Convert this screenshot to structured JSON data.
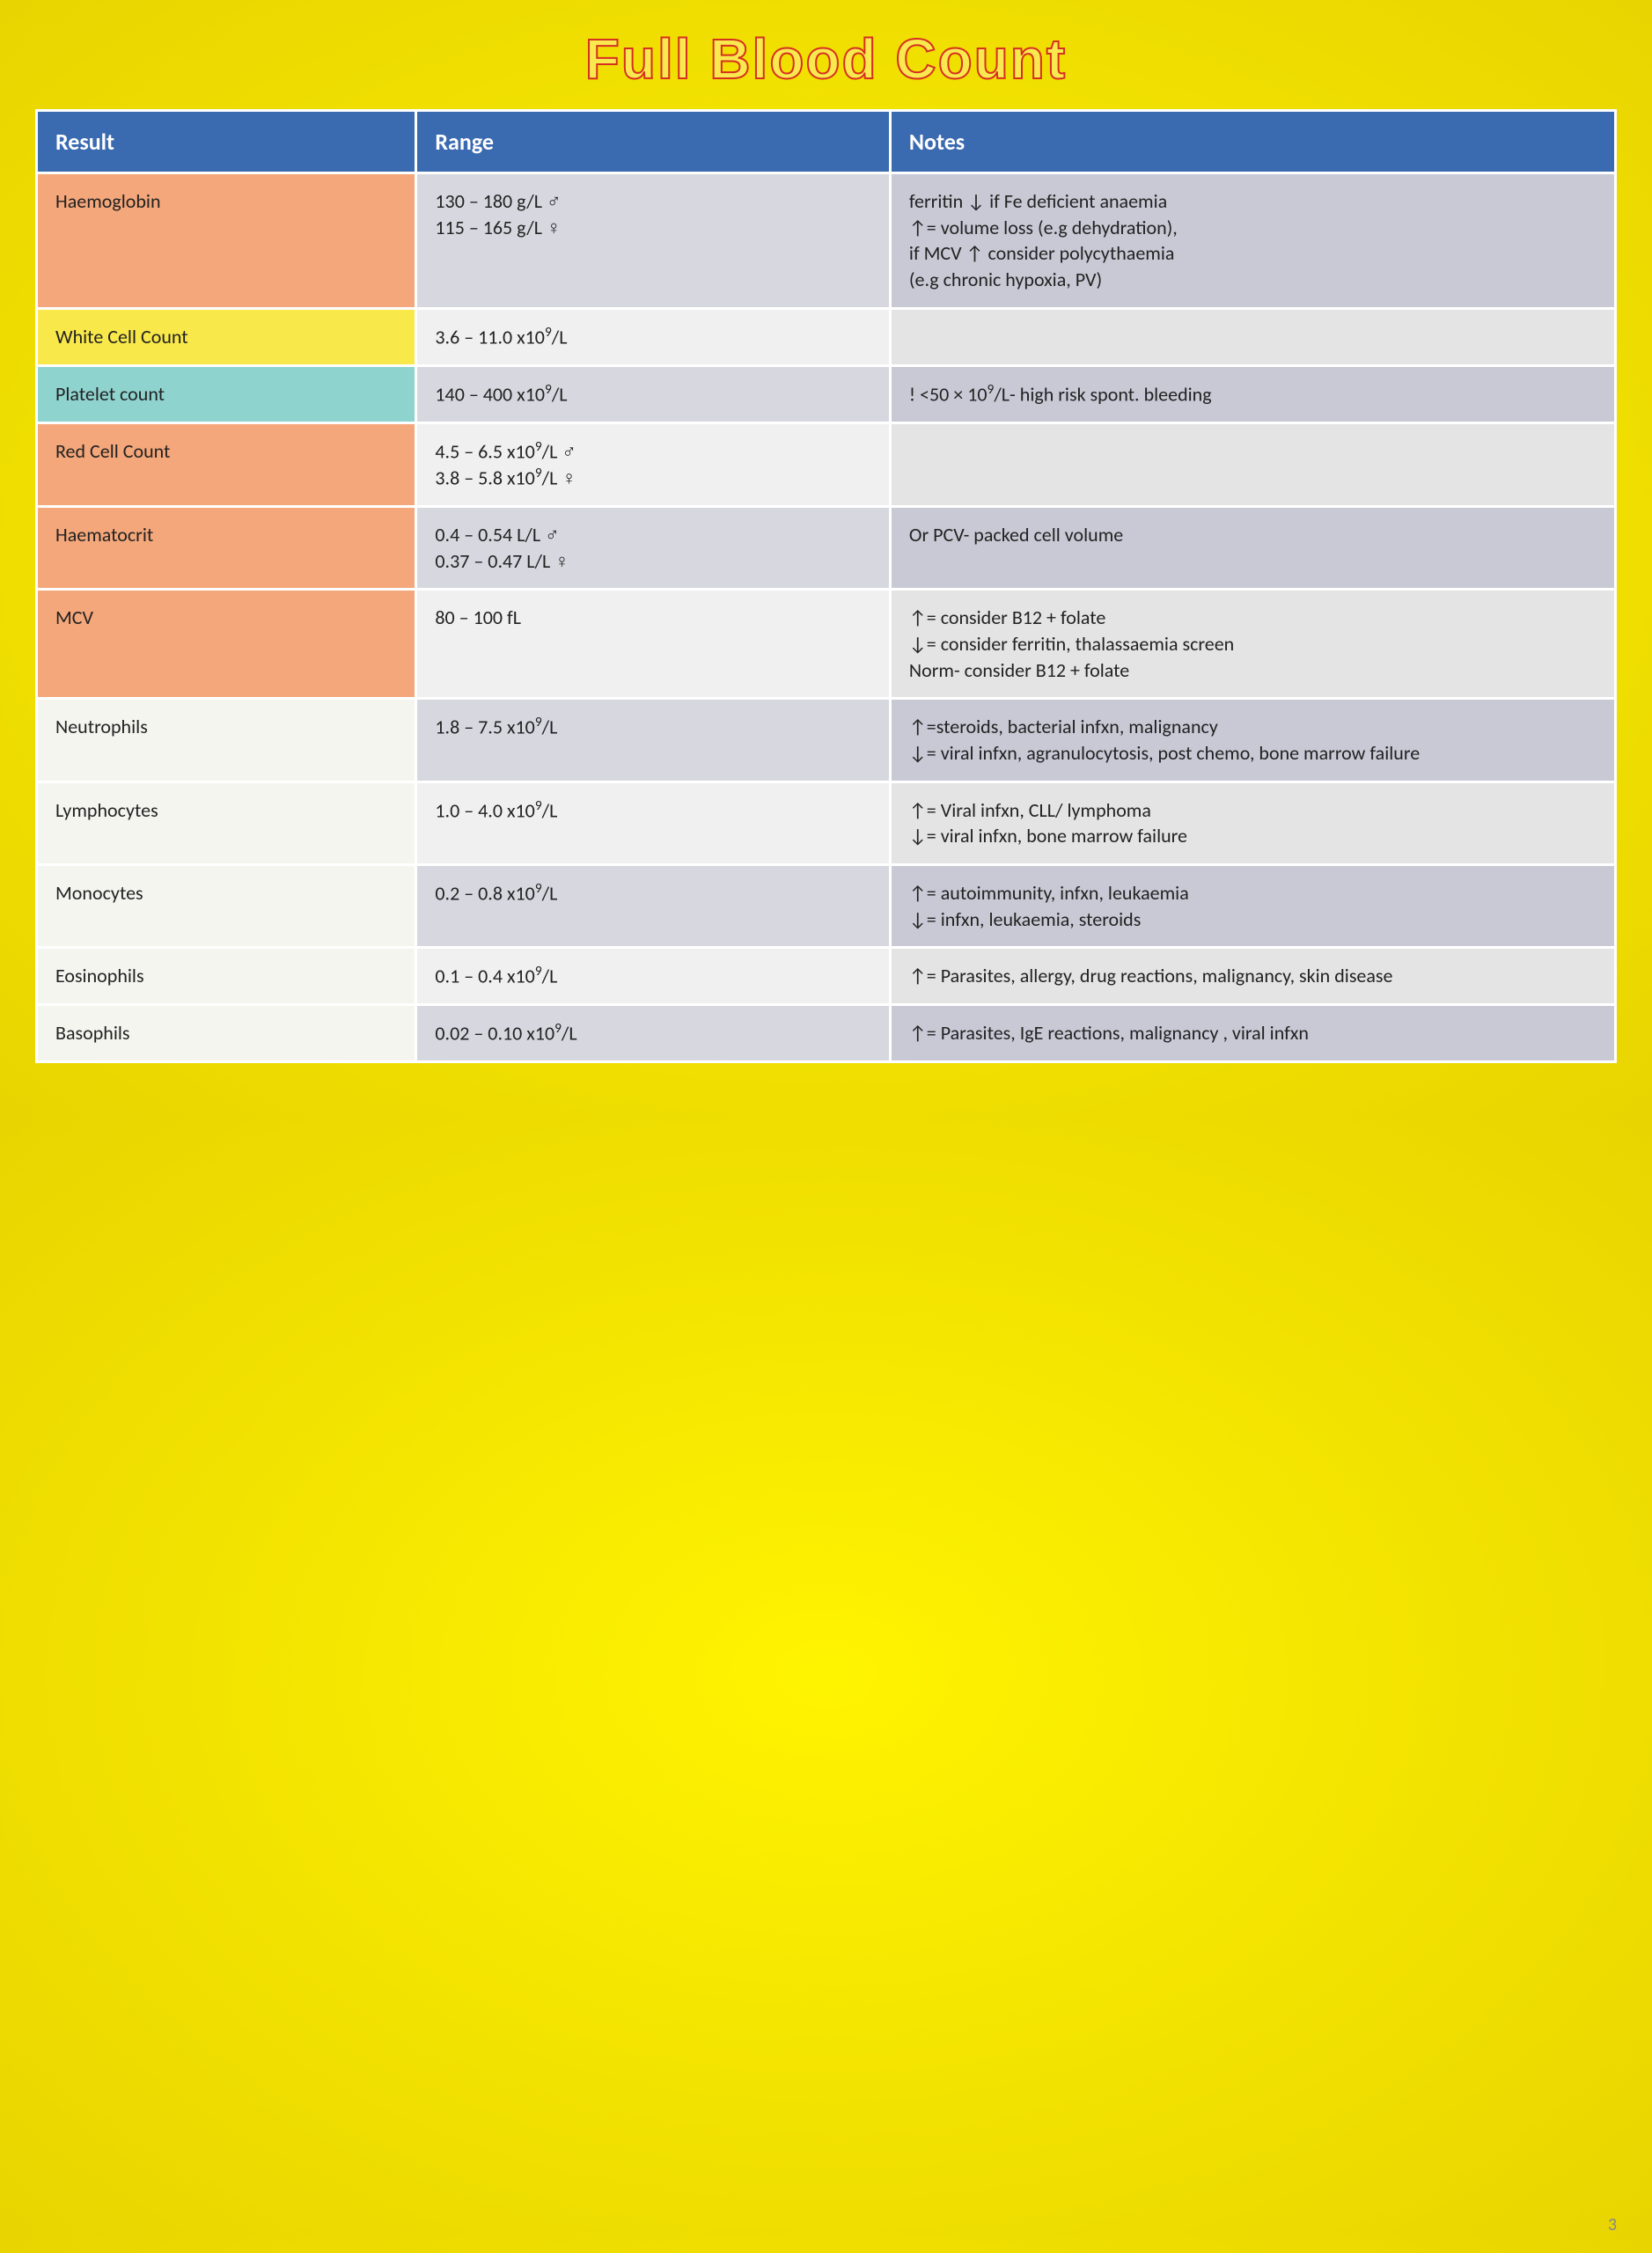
{
  "title": "Full Blood Count",
  "page_number": "3",
  "columns": [
    "Result",
    "Range",
    "Notes"
  ],
  "col_widths": [
    "24%",
    "30%",
    "46%"
  ],
  "header_bg": "#3a6ab0",
  "header_fg": "#ffffff",
  "default_range_bg": "#d7d7e0",
  "default_notes_bg": "#c9c9d6",
  "alt_range_bg": "#f0f0f0",
  "alt_notes_bg": "#e4e4e4",
  "row_colors": {
    "orange": "#f4a77a",
    "yellow": "#f9e84a",
    "teal": "#8fd3cf",
    "white": "#f5f5f0",
    "grey": "#d9d9d9"
  },
  "rows": [
    {
      "result": "Haemoglobin",
      "result_bg": "orange",
      "range_html": "130 – 180 g/L ♂<br>115 – 165 g/L ♀",
      "notes_html": "ferritin ↓ if Fe deficient anaemia<br>↑= volume loss (e.g dehydration),<br>if MCV ↑ consider polycythaemia<br>(e.g chronic hypoxia, PV)",
      "shade": "dark"
    },
    {
      "result": "White Cell Count",
      "result_bg": "yellow",
      "range_html": "3.6 – 11.0 x10<sup>9</sup>/L",
      "notes_html": "",
      "shade": "light"
    },
    {
      "result": "Platelet count",
      "result_bg": "teal",
      "range_html": "140 – 400 x10<sup>9</sup>/L",
      "notes_html": "! &lt;50 × 10<sup>9</sup>/L- high risk spont. bleeding",
      "shade": "dark"
    },
    {
      "result": "Red Cell Count",
      "result_bg": "orange",
      "range_html": "4.5 – 6.5 x10<sup>9</sup>/L ♂<br>3.8 – 5.8 x10<sup>9</sup>/L ♀",
      "notes_html": "",
      "shade": "light"
    },
    {
      "result": "Haematocrit",
      "result_bg": "orange",
      "range_html": "0.4 – 0.54 L/L ♂<br>0.37 – 0.47 L/L ♀",
      "notes_html": "Or PCV- packed cell volume",
      "shade": "dark"
    },
    {
      "result": "MCV",
      "result_bg": "orange",
      "range_html": "80 – 100 fL",
      "notes_html": "↑= consider B12 + folate<br>↓= consider ferritin, thalassaemia screen<br>Norm- consider B12 + folate",
      "shade": "light"
    },
    {
      "result": "Neutrophils",
      "result_bg": "white",
      "range_html": "1.8 – 7.5 x10<sup>9</sup>/L",
      "notes_html": "↑=steroids, bacterial infxn, malignancy<br>↓= viral infxn, agranulocytosis, post chemo, bone marrow failure",
      "shade": "dark"
    },
    {
      "result": "Lymphocytes",
      "result_bg": "white",
      "range_html": "1.0 – 4.0 x10<sup>9</sup>/L",
      "notes_html": "↑= Viral infxn, CLL/ lymphoma<br>↓= viral infxn, bone marrow failure",
      "shade": "light"
    },
    {
      "result": "Monocytes",
      "result_bg": "white",
      "range_html": "0.2 – 0.8 x10<sup>9</sup>/L",
      "notes_html": "↑= autoimmunity, infxn, leukaemia<br>↓= infxn, leukaemia, steroids",
      "shade": "dark"
    },
    {
      "result": "Eosinophils",
      "result_bg": "white",
      "range_html": "0.1 – 0.4 x10<sup>9</sup>/L",
      "notes_html": "↑= Parasites, allergy, drug reactions, malignancy, skin disease",
      "shade": "light"
    },
    {
      "result": "Basophils",
      "result_bg": "white",
      "range_html": "0.02 – 0.10 x10<sup>9</sup>/L",
      "notes_html": "↑= Parasites, IgE reactions, malignancy , viral infxn",
      "shade": "dark"
    }
  ]
}
